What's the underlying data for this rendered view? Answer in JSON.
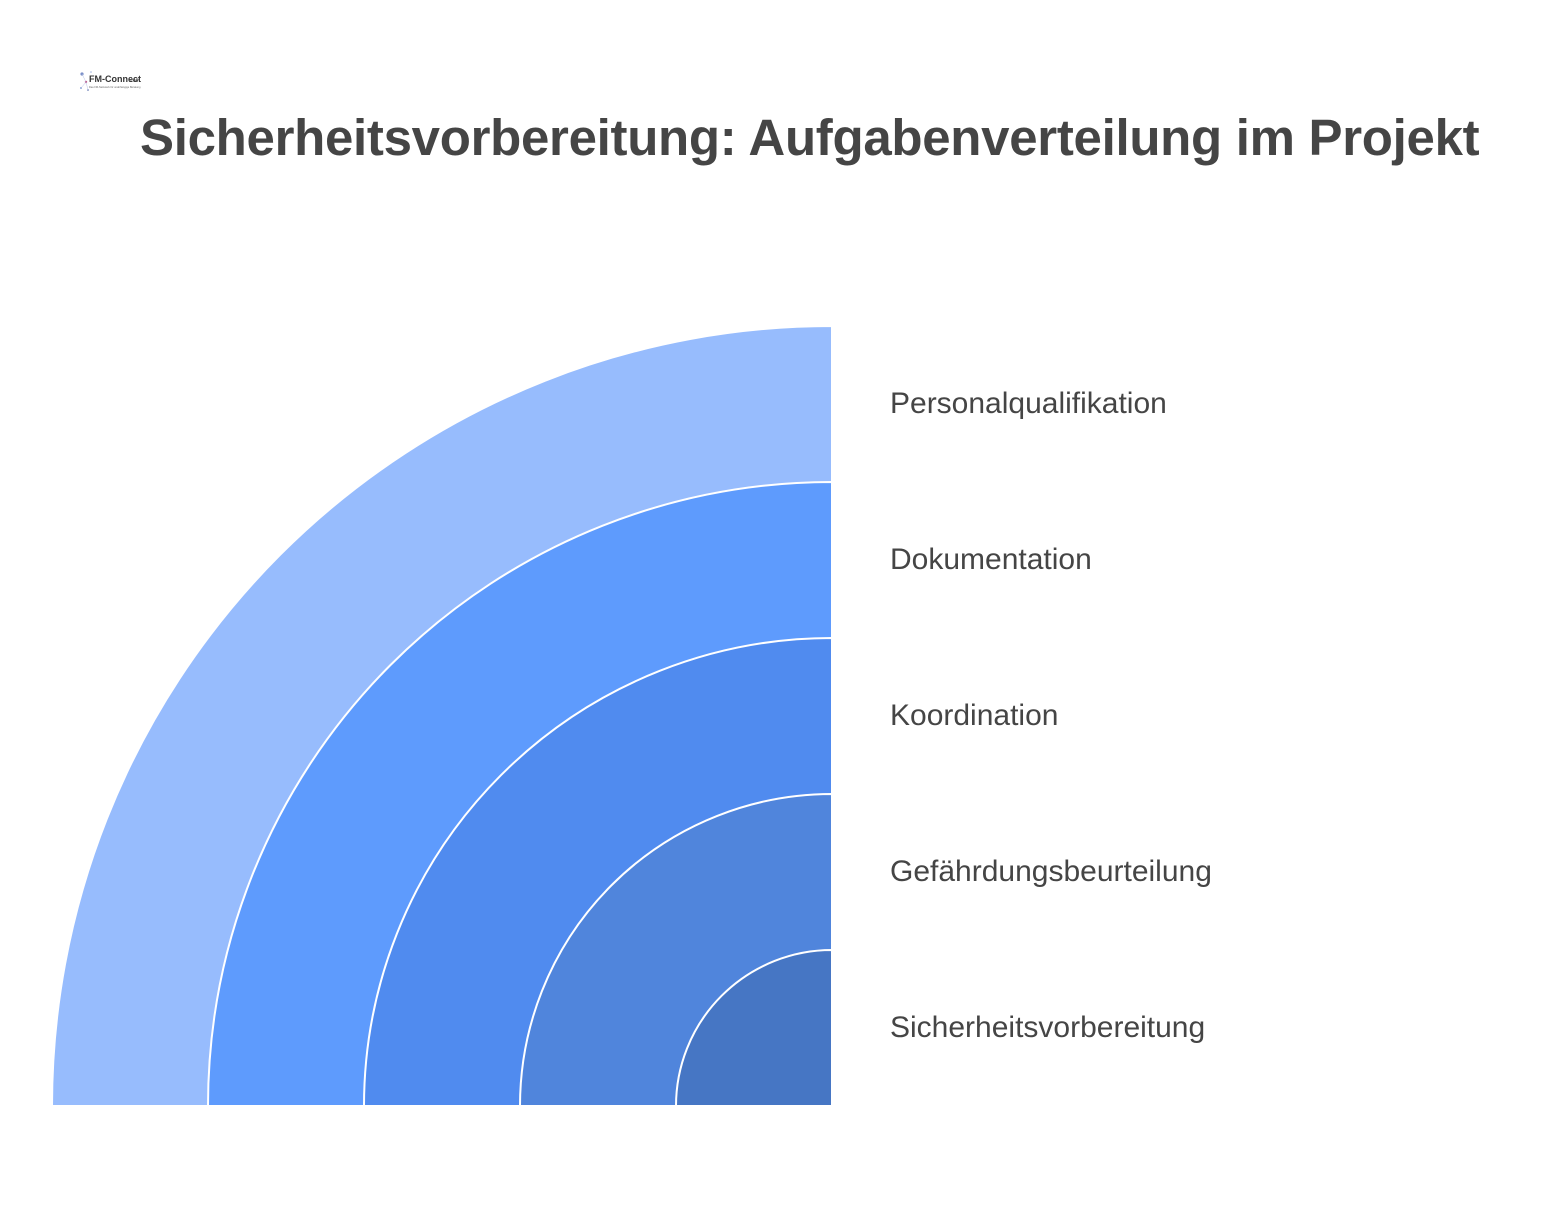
{
  "logo": {
    "text": "FM-Connect",
    "suffix": ".com",
    "tagline": "Das FM-Netzwerk für unabhängige Beratung"
  },
  "title": "Sicherheitsvorbereitung: Aufgabenverteilung im Projekt",
  "layers": [
    {
      "label": "Personalqualifikation",
      "color": "#97bcfd"
    },
    {
      "label": "Dokumentation",
      "color": "#5e9bfd"
    },
    {
      "label": "Koordination",
      "color": "#508bef"
    },
    {
      "label": "Gefährdungsbeurteilung",
      "color": "#5085dc"
    },
    {
      "label": "Sicherheitsvorbereitung",
      "color": "#4676c4"
    }
  ]
}
